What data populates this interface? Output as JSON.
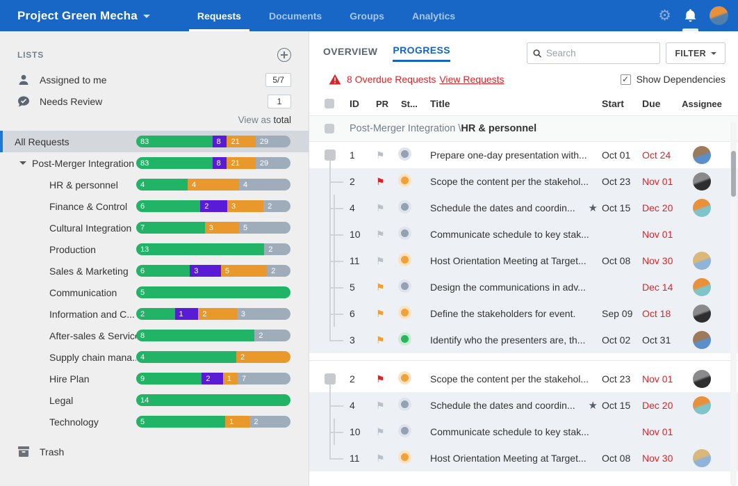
{
  "topbar": {
    "project_title": "Project Green Mecha",
    "tabs": [
      {
        "label": "Requests",
        "active": true
      },
      {
        "label": "Documents",
        "active": false
      },
      {
        "label": "Groups",
        "active": false
      },
      {
        "label": "Analytics",
        "active": false
      }
    ]
  },
  "sidebar": {
    "header": "LISTS",
    "quick_lists": [
      {
        "label": "Assigned to me",
        "badge": "5/7"
      },
      {
        "label": "Needs Review",
        "badge": "1"
      }
    ],
    "view_as_prefix": "View as",
    "view_as_value": "total",
    "items": [
      {
        "label": "All Requests",
        "indent": 0,
        "selected": true,
        "caret": false,
        "segments": [
          {
            "color": "green",
            "value": 83
          },
          {
            "color": "purple",
            "value": 8
          },
          {
            "color": "orange",
            "value": 21
          },
          {
            "color": "gray",
            "value": 29
          }
        ]
      },
      {
        "label": "Post-Merger Integration",
        "indent": 1,
        "selected": false,
        "caret": true,
        "segments": [
          {
            "color": "green",
            "value": 83
          },
          {
            "color": "purple",
            "value": 8
          },
          {
            "color": "orange",
            "value": 21
          },
          {
            "color": "gray",
            "value": 29
          }
        ]
      },
      {
        "label": "HR & personnel",
        "indent": 2,
        "selected": false,
        "caret": false,
        "segments": [
          {
            "color": "green",
            "value": 4
          },
          {
            "color": "orange",
            "value": 4
          },
          {
            "color": "gray",
            "value": 4
          }
        ]
      },
      {
        "label": "Finance & Control",
        "indent": 2,
        "selected": false,
        "caret": false,
        "segments": [
          {
            "color": "green",
            "value": 6
          },
          {
            "color": "purple",
            "value": 2
          },
          {
            "color": "orange",
            "value": 3
          },
          {
            "color": "gray",
            "value": 2
          }
        ]
      },
      {
        "label": "Cultural Integration",
        "indent": 2,
        "selected": false,
        "caret": false,
        "segments": [
          {
            "color": "green",
            "value": 7
          },
          {
            "color": "orange",
            "value": 3
          },
          {
            "color": "gray",
            "value": 5
          }
        ]
      },
      {
        "label": "Production",
        "indent": 2,
        "selected": false,
        "caret": false,
        "segments": [
          {
            "color": "green",
            "value": 13
          },
          {
            "color": "gray",
            "value": 2
          }
        ]
      },
      {
        "label": "Sales & Marketing",
        "indent": 2,
        "selected": false,
        "caret": false,
        "segments": [
          {
            "color": "green",
            "value": 6
          },
          {
            "color": "purple",
            "value": 3
          },
          {
            "color": "orange",
            "value": 5
          },
          {
            "color": "gray",
            "value": 2
          }
        ]
      },
      {
        "label": "Communication",
        "indent": 2,
        "selected": false,
        "caret": false,
        "segments": [
          {
            "color": "green",
            "value": 5
          }
        ]
      },
      {
        "label": "Information and C...",
        "indent": 2,
        "selected": false,
        "caret": false,
        "segments": [
          {
            "color": "green",
            "value": 2
          },
          {
            "color": "purple",
            "value": 1
          },
          {
            "color": "orange",
            "value": 2
          },
          {
            "color": "gray",
            "value": 3
          }
        ]
      },
      {
        "label": "After-sales & Service",
        "indent": 2,
        "selected": false,
        "caret": false,
        "segments": [
          {
            "color": "green",
            "value": 8
          },
          {
            "color": "gray",
            "value": 2
          }
        ]
      },
      {
        "label": "Supply chain mana...",
        "indent": 2,
        "selected": false,
        "caret": false,
        "segments": [
          {
            "color": "green",
            "value": 4
          },
          {
            "color": "orange",
            "value": 2
          }
        ]
      },
      {
        "label": "Hire Plan",
        "indent": 2,
        "selected": false,
        "caret": false,
        "segments": [
          {
            "color": "green",
            "value": 9
          },
          {
            "color": "purple",
            "value": 2
          },
          {
            "color": "orange",
            "value": 1
          },
          {
            "color": "gray",
            "value": 7
          }
        ]
      },
      {
        "label": "Legal",
        "indent": 2,
        "selected": false,
        "caret": false,
        "segments": [
          {
            "color": "green",
            "value": 14
          }
        ]
      },
      {
        "label": "Technology",
        "indent": 2,
        "selected": false,
        "caret": false,
        "segments": [
          {
            "color": "green",
            "value": 5
          },
          {
            "color": "orange",
            "value": 1
          },
          {
            "color": "gray",
            "value": 2
          }
        ]
      }
    ],
    "trash_label": "Trash"
  },
  "main": {
    "view_tabs": [
      {
        "label": "OVERVIEW",
        "active": false
      },
      {
        "label": "PROGRESS",
        "active": true
      }
    ],
    "search_placeholder": "Search",
    "filter_label": "FILTER",
    "alert": {
      "text": "8 Overdue Requests",
      "link": "View Requests"
    },
    "show_dependencies": {
      "label": "Show Dependencies",
      "checked": true
    },
    "table": {
      "columns": [
        "ID",
        "PR",
        "St...",
        "Title",
        "Start",
        "Due",
        "Assignee"
      ],
      "group_header": {
        "prefix": "Post-Merger Integration \\",
        "bold": "HR & personnel"
      },
      "groups": [
        {
          "rows": [
            {
              "id": "1",
              "flag": "gray",
              "status": "gray",
              "title": "Prepare one-day presentation with...",
              "starred": false,
              "start": "Oct 01",
              "due": "Oct 24",
              "due_overdue": true,
              "avatar": "man_blue",
              "root": true
            },
            {
              "id": "2",
              "flag": "red",
              "status": "orange",
              "title": "Scope the content per the stakehol...",
              "starred": false,
              "start": "Oct 23",
              "due": "Nov 01",
              "due_overdue": true,
              "avatar": "woman_dark",
              "root": false
            },
            {
              "id": "4",
              "flag": "gray",
              "status": "gray",
              "title": "Schedule the dates and coordin...",
              "starred": true,
              "start": "Oct 15",
              "due": "Dec 20",
              "due_overdue": true,
              "avatar": "man_orange",
              "root": false
            },
            {
              "id": "10",
              "flag": "gray",
              "status": "gray",
              "title": "Communicate schedule to key stak...",
              "starred": false,
              "start": "",
              "due": "Nov 01",
              "due_overdue": true,
              "avatar": null,
              "root": false
            },
            {
              "id": "11",
              "flag": "gray",
              "status": "orange",
              "title": "Host Orientation Meeting at Target...",
              "starred": false,
              "start": "Oct 08",
              "due": "Nov 30",
              "due_overdue": true,
              "avatar": "woman_blonde",
              "root": false
            },
            {
              "id": "5",
              "flag": "orange",
              "status": "gray",
              "title": "Design the communications in adv...",
              "starred": false,
              "start": "",
              "due": "Dec 14",
              "due_overdue": true,
              "avatar": "man_orange",
              "root": false
            },
            {
              "id": "6",
              "flag": "orange",
              "status": "orange",
              "title": "Define the stakeholders for event.",
              "starred": false,
              "start": "Sep 09",
              "due": "Oct 18",
              "due_overdue": true,
              "avatar": "woman_dark",
              "root": false
            },
            {
              "id": "3",
              "flag": "orange",
              "status": "green",
              "title": "Identify who the presenters are, th...",
              "starred": false,
              "start": "Oct 02",
              "due": "Oct 31",
              "due_overdue": false,
              "avatar": "man_blue",
              "root": false
            }
          ]
        },
        {
          "rows": [
            {
              "id": "2",
              "flag": "red",
              "status": "orange",
              "title": "Scope the content per the stakehol...",
              "starred": false,
              "start": "Oct 23",
              "due": "Nov 01",
              "due_overdue": true,
              "avatar": "woman_dark",
              "root": true
            },
            {
              "id": "4",
              "flag": "gray",
              "status": "gray",
              "title": "Schedule the dates and coordin...",
              "starred": true,
              "start": "Oct 15",
              "due": "Dec 20",
              "due_overdue": true,
              "avatar": "man_orange",
              "root": false
            },
            {
              "id": "10",
              "flag": "gray",
              "status": "gray",
              "title": "Communicate schedule to key stak...",
              "starred": false,
              "start": "",
              "due": "Nov 01",
              "due_overdue": true,
              "avatar": null,
              "root": false
            },
            {
              "id": "11",
              "flag": "gray",
              "status": "orange",
              "title": "Host Orientation Meeting at Target...",
              "starred": false,
              "start": "Oct 08",
              "due": "Nov 30",
              "due_overdue": true,
              "avatar": "woman_blonde",
              "root": false
            }
          ]
        }
      ]
    }
  },
  "colors": {
    "topbar_blue": "#1866c5",
    "overdue_red": "#d9252a",
    "active_tab_blue": "#1565c0",
    "bar": {
      "green": "#22b466",
      "purple": "#5a1bd6",
      "orange": "#e9992b",
      "gray": "#9fadbb"
    },
    "flag": {
      "gray": "#b9c0c8",
      "red": "#d9252a",
      "orange": "#ef9f33"
    },
    "avatars": {
      "man_blue": [
        "#9c7a5a",
        "#5b8fc7"
      ],
      "woman_dark": [
        "#8a8a8c",
        "#2e2e30"
      ],
      "man_orange": [
        "#e8913a",
        "#7fc4c9"
      ],
      "woman_blonde": [
        "#d9b87a",
        "#8fb3d9"
      ],
      "topbar_user": [
        "#e8913a",
        "#4f7fae"
      ]
    }
  }
}
